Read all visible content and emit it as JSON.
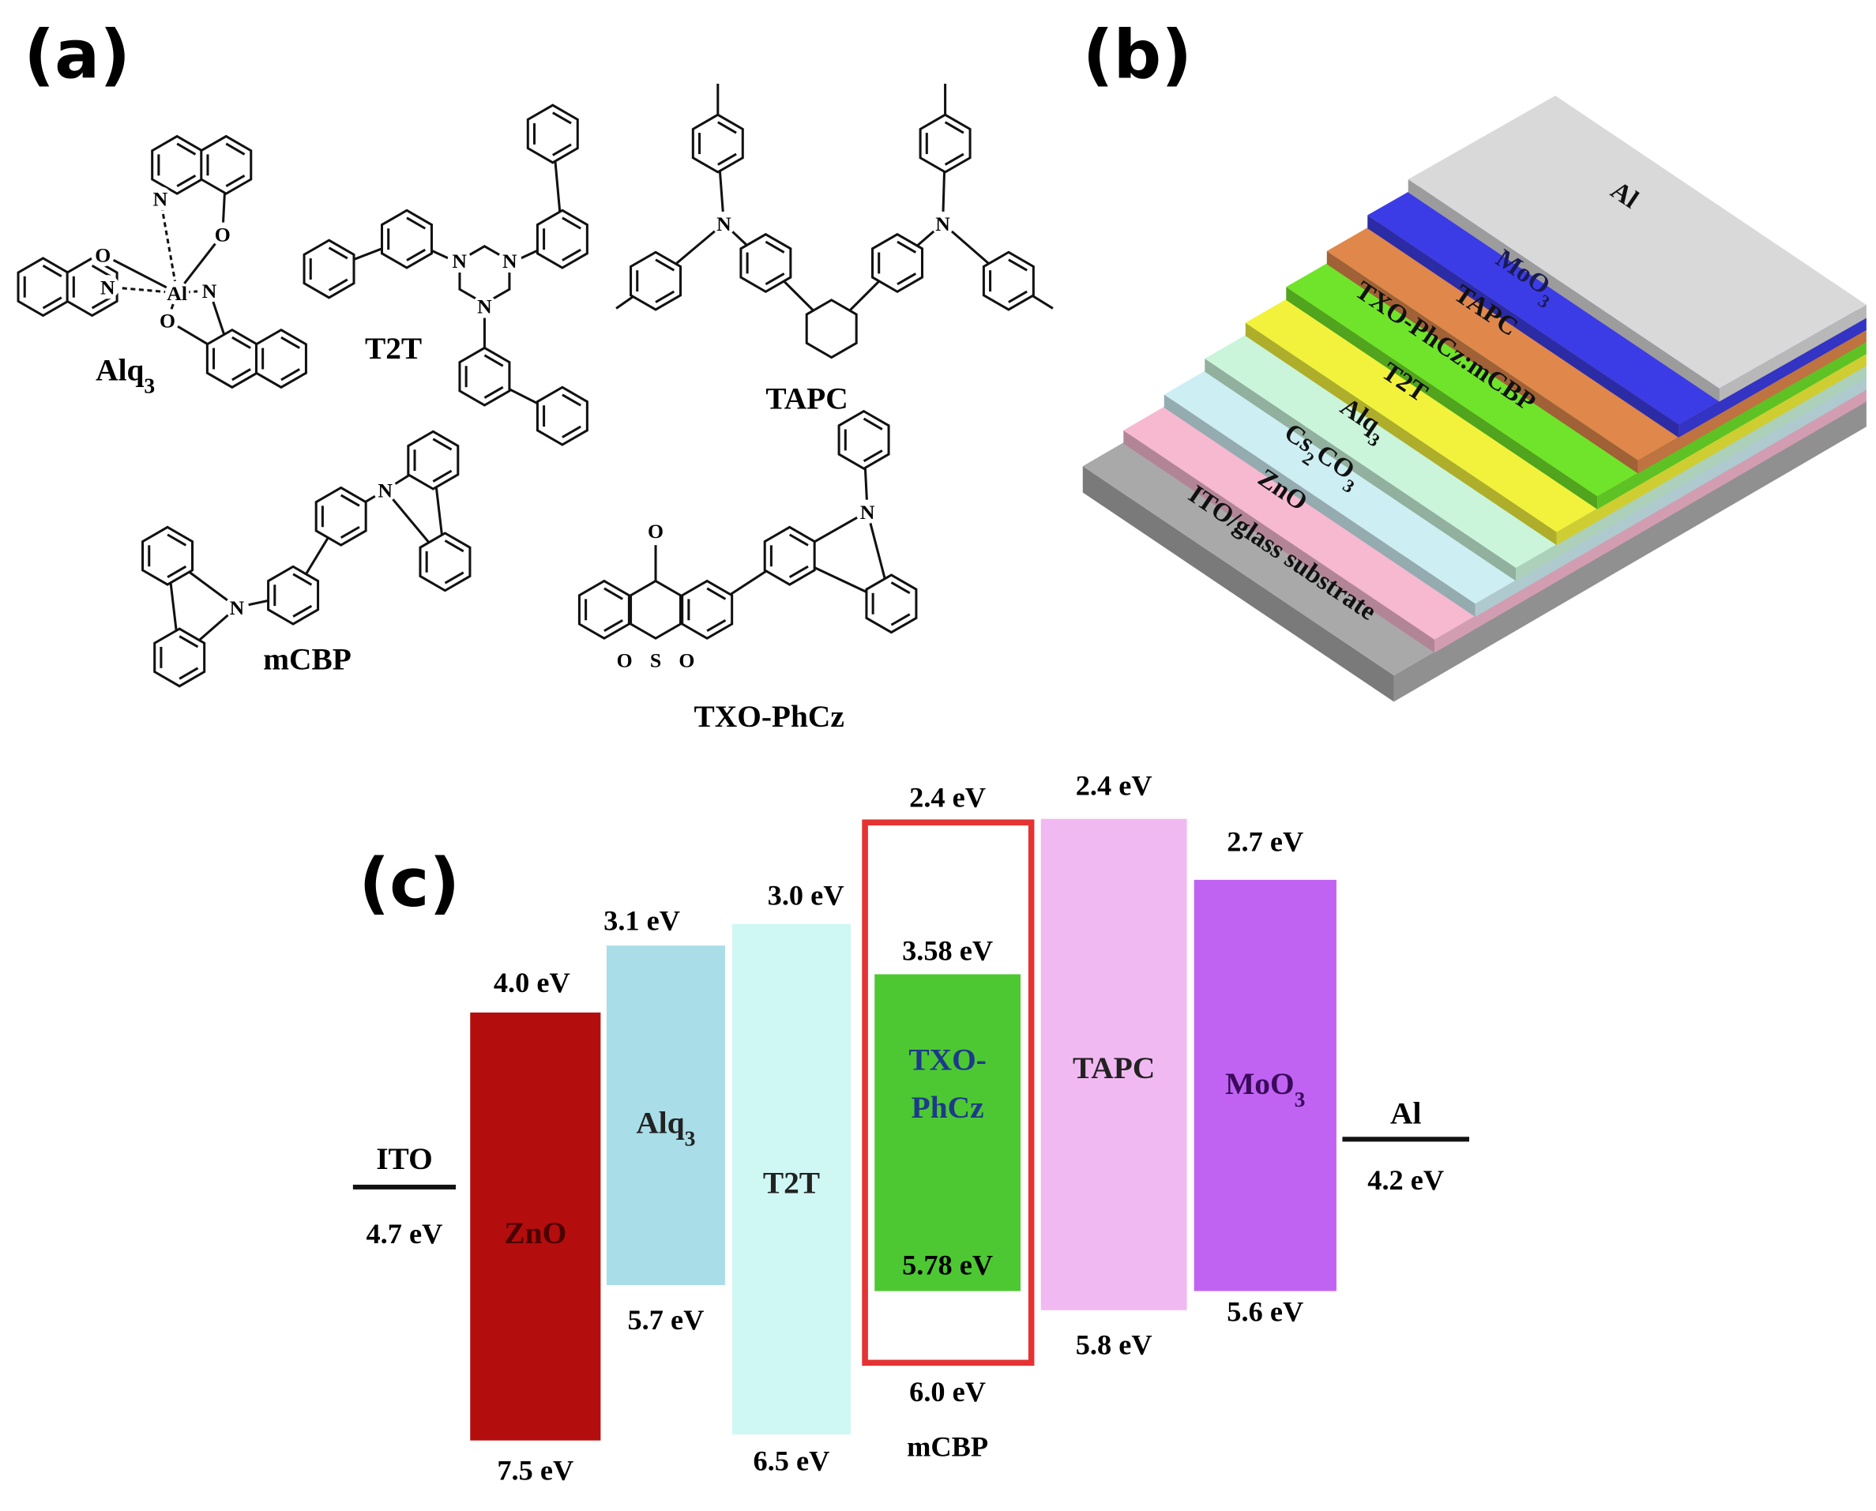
{
  "panels": {
    "a": "(a)",
    "b": "(b)",
    "c": "(c)"
  },
  "structures": [
    {
      "name": [
        "Alq",
        "3"
      ],
      "atoms": [
        "N",
        "O",
        "O",
        "N",
        "N",
        "O",
        "Al"
      ]
    },
    {
      "name": [
        "T2T"
      ],
      "atoms": [
        "N",
        "N",
        "N"
      ]
    },
    {
      "name": [
        "TAPC"
      ],
      "atoms": [
        "N",
        "N"
      ]
    },
    {
      "name": [
        "mCBP"
      ],
      "atoms": [
        "N",
        "N"
      ]
    },
    {
      "name": [
        "TXO-PhCz"
      ],
      "atoms": [
        "O",
        "S",
        "O",
        "O",
        "N"
      ]
    }
  ],
  "device_stack": {
    "layers": [
      {
        "label": [
          "ITO/glass substrate"
        ]
      },
      {
        "label": [
          "ZnO"
        ]
      },
      {
        "label": [
          "Cs",
          "2",
          "CO",
          "3"
        ]
      },
      {
        "label": [
          "Alq",
          "3"
        ]
      },
      {
        "label": [
          "T2T"
        ]
      },
      {
        "label": [
          "TXO-PhCz:mCBP"
        ]
      },
      {
        "label": [
          "TAPC"
        ]
      },
      {
        "label": [
          "MoO",
          "3"
        ]
      },
      {
        "label": [
          "Al"
        ]
      }
    ]
  },
  "energy_diagram": {
    "electrodes": [
      {
        "name": "ITO",
        "level": "4.7 eV"
      },
      {
        "name": "Al",
        "level": "4.2 eV"
      }
    ],
    "materials": [
      {
        "name": [
          "ZnO"
        ],
        "lumo": "4.0 eV",
        "homo": "7.5 eV"
      },
      {
        "name": [
          "Alq",
          "3"
        ],
        "lumo": "3.1 eV",
        "homo": "5.7 eV"
      },
      {
        "name": [
          "T2T"
        ],
        "lumo": "3.0 eV",
        "homo": "6.5 eV"
      },
      {
        "name": [
          "TXO-",
          "PhCz"
        ],
        "lumo": "3.58 eV",
        "homo": "5.78 eV"
      },
      {
        "name": [
          "TAPC"
        ],
        "lumo": "2.4 eV",
        "homo": "5.8 eV"
      },
      {
        "name": [
          "MoO",
          "3"
        ],
        "lumo": "2.7 eV",
        "homo": "5.6 eV"
      }
    ],
    "host": {
      "name": "mCBP",
      "lumo": "2.4 eV",
      "homo": "6.0 eV"
    }
  }
}
